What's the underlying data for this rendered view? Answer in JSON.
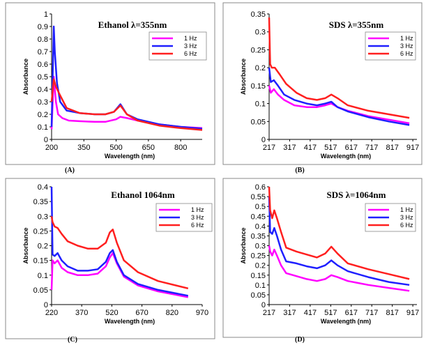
{
  "chart_data": [
    {
      "type": "line",
      "title": "Ethanol λ=355nm",
      "caption": "(A)",
      "xlabel": "Wavelength (nm)",
      "ylabel": "Absorbance",
      "xlim": [
        200,
        900
      ],
      "ylim": [
        0,
        1
      ],
      "xticks": [
        200,
        350,
        500,
        650,
        800
      ],
      "yticks": [
        0,
        0.1,
        0.2,
        0.3,
        0.4,
        0.5,
        0.6,
        0.7,
        0.8,
        0.9,
        1
      ],
      "ytick_labels": [
        "0",
        "0.1",
        "0.2",
        "0.3",
        "0.4",
        "0.5",
        "0.6",
        "0.7",
        "0.8",
        "0.9",
        "1"
      ],
      "legend_position": "top-right",
      "series": [
        {
          "name": "1 Hz",
          "color": "#ff00ff",
          "x": [
            200,
            210,
            220,
            230,
            250,
            280,
            330,
            400,
            450,
            500,
            520,
            550,
            600,
            700,
            800,
            900
          ],
          "y": [
            0.08,
            0.5,
            0.3,
            0.2,
            0.17,
            0.15,
            0.145,
            0.14,
            0.14,
            0.16,
            0.18,
            0.17,
            0.15,
            0.12,
            0.1,
            0.09
          ]
        },
        {
          "name": "3 Hz",
          "color": "#1f1fff",
          "x": [
            200,
            210,
            215,
            225,
            240,
            270,
            330,
            400,
            450,
            490,
            520,
            550,
            600,
            700,
            800,
            900
          ],
          "y": [
            0.1,
            0.9,
            0.7,
            0.45,
            0.3,
            0.23,
            0.21,
            0.2,
            0.2,
            0.22,
            0.28,
            0.2,
            0.16,
            0.12,
            0.1,
            0.085
          ]
        },
        {
          "name": "6 Hz",
          "color": "#ff1f1f",
          "x": [
            200,
            210,
            220,
            240,
            270,
            330,
            400,
            450,
            490,
            520,
            550,
            600,
            700,
            800,
            900
          ],
          "y": [
            0.3,
            0.48,
            0.42,
            0.35,
            0.25,
            0.21,
            0.2,
            0.2,
            0.22,
            0.27,
            0.2,
            0.15,
            0.11,
            0.09,
            0.075
          ]
        }
      ]
    },
    {
      "type": "line",
      "title": "SDS λ=355nm",
      "caption": "(B)",
      "xlabel": "Wavelength (nm)",
      "ylabel": "Absorbance",
      "xlim": [
        217,
        937
      ],
      "ylim": [
        0,
        0.35
      ],
      "xticks": [
        217,
        317,
        417,
        517,
        617,
        717,
        817,
        917
      ],
      "yticks": [
        0,
        0.05,
        0.1,
        0.15,
        0.2,
        0.25,
        0.3,
        0.35
      ],
      "ytick_labels": [
        "0",
        "0.05",
        "0.1",
        "0.15",
        "0.2",
        "0.25",
        "0.3",
        "0.35"
      ],
      "legend_position": "top-right",
      "series": [
        {
          "name": "1 Hz",
          "color": "#ff00ff",
          "x": [
            217,
            225,
            240,
            260,
            290,
            340,
            400,
            450,
            490,
            520,
            550,
            600,
            700,
            800,
            900
          ],
          "y": [
            0.15,
            0.13,
            0.14,
            0.125,
            0.11,
            0.095,
            0.09,
            0.09,
            0.095,
            0.1,
            0.09,
            0.08,
            0.065,
            0.055,
            0.045
          ]
        },
        {
          "name": "3 Hz",
          "color": "#1f1fff",
          "x": [
            217,
            225,
            240,
            260,
            290,
            340,
            400,
            450,
            490,
            520,
            550,
            600,
            700,
            800,
            900
          ],
          "y": [
            0.2,
            0.16,
            0.165,
            0.15,
            0.125,
            0.11,
            0.1,
            0.095,
            0.1,
            0.105,
            0.09,
            0.078,
            0.062,
            0.05,
            0.04
          ]
        },
        {
          "name": "6 Hz",
          "color": "#ff1f1f",
          "x": [
            217,
            222,
            230,
            245,
            270,
            300,
            350,
            400,
            450,
            490,
            520,
            550,
            600,
            700,
            800,
            900
          ],
          "y": [
            0.34,
            0.21,
            0.2,
            0.2,
            0.18,
            0.155,
            0.13,
            0.115,
            0.11,
            0.115,
            0.125,
            0.115,
            0.095,
            0.08,
            0.07,
            0.06
          ]
        }
      ]
    },
    {
      "type": "line",
      "title": "Ethanol 1064nm",
      "caption": "(C)",
      "xlabel": "Wavelength (nm)",
      "ylabel": "Absorbance",
      "xlim": [
        220,
        970
      ],
      "ylim": [
        0,
        0.4
      ],
      "xticks": [
        220,
        370,
        520,
        670,
        820,
        970
      ],
      "yticks": [
        0,
        0.05,
        0.1,
        0.15,
        0.2,
        0.25,
        0.3,
        0.35,
        0.4
      ],
      "ytick_labels": [
        "0",
        "0.05",
        "0.1",
        "0.15",
        "0.2",
        "0.25",
        "0.3",
        "0.35",
        "0.4"
      ],
      "legend_position": "top-right",
      "series": [
        {
          "name": "1 Hz",
          "color": "#ff00ff",
          "x": [
            220,
            225,
            235,
            250,
            270,
            300,
            350,
            400,
            450,
            490,
            510,
            525,
            545,
            580,
            650,
            750,
            900
          ],
          "y": [
            0.05,
            0.15,
            0.14,
            0.15,
            0.125,
            0.11,
            0.1,
            0.1,
            0.105,
            0.13,
            0.16,
            0.175,
            0.14,
            0.095,
            0.065,
            0.045,
            0.025
          ]
        },
        {
          "name": "3 Hz",
          "color": "#1f1fff",
          "x": [
            220,
            225,
            235,
            250,
            270,
            300,
            350,
            400,
            450,
            490,
            510,
            525,
            545,
            580,
            650,
            750,
            900
          ],
          "y": [
            0.4,
            0.17,
            0.165,
            0.175,
            0.15,
            0.13,
            0.115,
            0.115,
            0.12,
            0.145,
            0.175,
            0.185,
            0.145,
            0.1,
            0.07,
            0.05,
            0.03
          ]
        },
        {
          "name": "6 Hz",
          "color": "#ff1f1f",
          "x": [
            220,
            225,
            235,
            250,
            270,
            300,
            350,
            400,
            450,
            490,
            510,
            525,
            545,
            580,
            650,
            750,
            900
          ],
          "y": [
            0.3,
            0.28,
            0.265,
            0.26,
            0.24,
            0.215,
            0.2,
            0.19,
            0.19,
            0.21,
            0.245,
            0.255,
            0.21,
            0.15,
            0.11,
            0.08,
            0.055
          ]
        }
      ]
    },
    {
      "type": "line",
      "title": "SDS λ=1064nm",
      "caption": "(D)",
      "xlabel": "Wavelength (nm)",
      "ylabel": "Absorbance",
      "xlim": [
        217,
        937
      ],
      "ylim": [
        0,
        0.6
      ],
      "xticks": [
        217,
        317,
        417,
        517,
        617,
        717,
        817,
        917
      ],
      "yticks": [
        0,
        0.05,
        0.1,
        0.15,
        0.2,
        0.25,
        0.3,
        0.35,
        0.4,
        0.45,
        0.5,
        0.55,
        0.6
      ],
      "ytick_labels": [
        "0",
        "0.05",
        "0.1",
        "0.15",
        "0.2",
        "0.25",
        "0.3",
        "0.35",
        "0.4",
        "0.45",
        "0.5",
        "0.55",
        "0.6"
      ],
      "legend_position": "top-right",
      "series": [
        {
          "name": "1 Hz",
          "color": "#ff00ff",
          "x": [
            217,
            222,
            232,
            242,
            255,
            275,
            300,
            350,
            400,
            450,
            490,
            520,
            550,
            600,
            700,
            800,
            900
          ],
          "y": [
            0.3,
            0.27,
            0.25,
            0.28,
            0.25,
            0.2,
            0.16,
            0.145,
            0.13,
            0.12,
            0.13,
            0.15,
            0.14,
            0.12,
            0.1,
            0.085,
            0.07
          ]
        },
        {
          "name": "3 Hz",
          "color": "#1f1fff",
          "x": [
            217,
            222,
            232,
            242,
            255,
            275,
            300,
            350,
            400,
            450,
            490,
            520,
            550,
            600,
            700,
            800,
            900
          ],
          "y": [
            0.55,
            0.37,
            0.36,
            0.39,
            0.35,
            0.28,
            0.22,
            0.21,
            0.195,
            0.185,
            0.2,
            0.225,
            0.2,
            0.17,
            0.14,
            0.115,
            0.1
          ]
        },
        {
          "name": "6 Hz",
          "color": "#ff1f1f",
          "x": [
            217,
            222,
            232,
            242,
            255,
            275,
            300,
            350,
            400,
            450,
            490,
            520,
            550,
            600,
            700,
            800,
            900
          ],
          "y": [
            0.6,
            0.48,
            0.44,
            0.48,
            0.44,
            0.37,
            0.29,
            0.27,
            0.255,
            0.24,
            0.26,
            0.295,
            0.26,
            0.21,
            0.18,
            0.155,
            0.13
          ]
        }
      ]
    }
  ]
}
